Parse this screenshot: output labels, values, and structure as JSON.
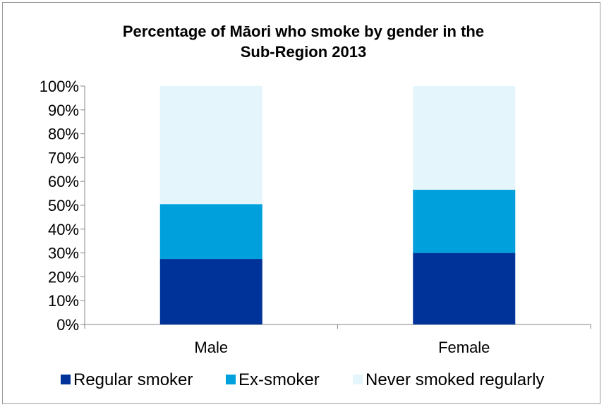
{
  "chart_data": {
    "type": "bar",
    "stacked": true,
    "title_lines": [
      "Percentage of Māori who smoke by gender in the",
      "Sub-Region 2013"
    ],
    "categories": [
      "Male",
      "Female"
    ],
    "series": [
      {
        "name": "Regular smoker",
        "values": [
          27.5,
          30.0
        ],
        "color": "#003399"
      },
      {
        "name": "Ex-smoker",
        "values": [
          23.0,
          26.5
        ],
        "color": "#00A0DC"
      },
      {
        "name": "Never smoked regularly",
        "values": [
          49.5,
          43.5
        ],
        "color": "#E5F5FC"
      }
    ],
    "y_ticks": [
      "0%",
      "10%",
      "20%",
      "30%",
      "40%",
      "50%",
      "60%",
      "70%",
      "80%",
      "90%",
      "100%"
    ],
    "ylim": [
      0,
      100
    ],
    "legend_position": "bottom",
    "grid": false
  }
}
